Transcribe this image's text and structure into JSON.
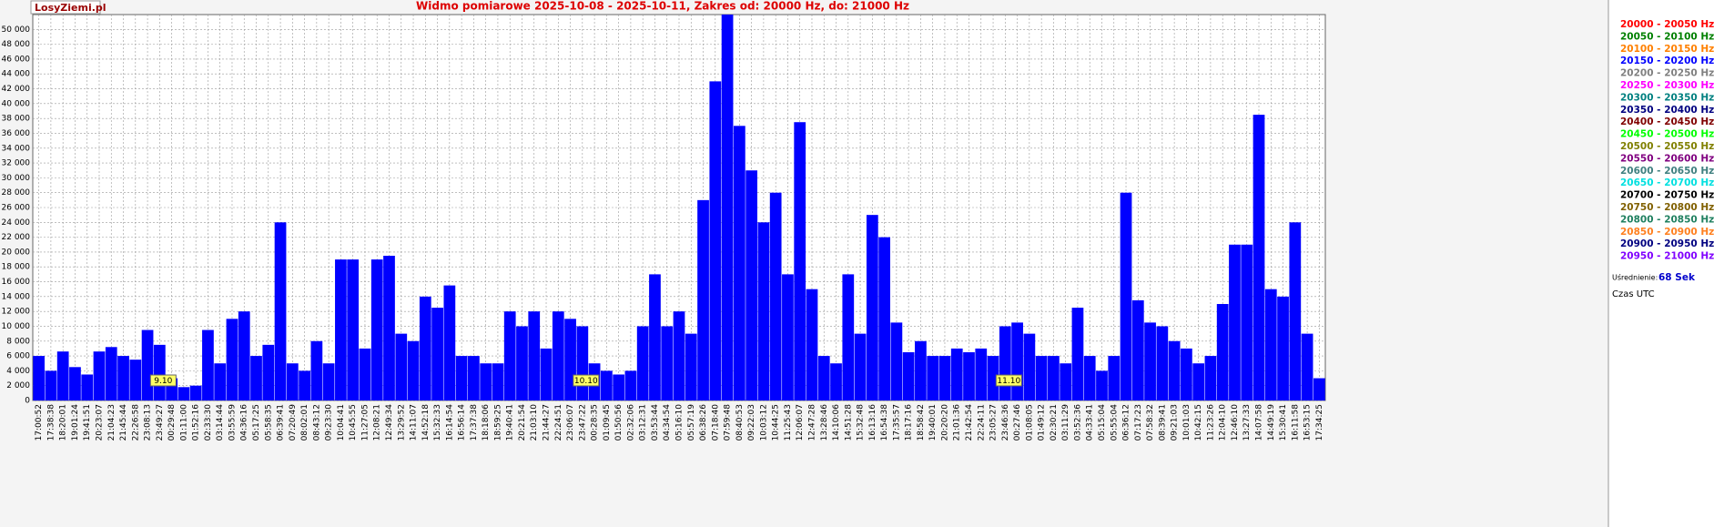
{
  "brand": "LosyZiemi.pl",
  "chart_data": {
    "type": "bar",
    "title": "Widmo pomiarowe 2025-10-08 - 2025-10-11, Zakres od: 20000 Hz, do: 21000 Hz",
    "categories": [
      "17:00:52",
      "17:38:38",
      "18:20:01",
      "19:01:24",
      "19:41:51",
      "20:23:07",
      "21:04:23",
      "21:45:44",
      "22:26:58",
      "23:08:13",
      "23:49:27",
      "00:29:48",
      "01:11:00",
      "01:52:16",
      "02:33:30",
      "03:14:44",
      "03:55:59",
      "04:36:16",
      "05:17:25",
      "05:58:35",
      "06:39:41",
      "07:20:49",
      "08:02:01",
      "08:43:12",
      "09:23:30",
      "10:04:41",
      "10:45:55",
      "11:27:05",
      "12:08:21",
      "12:49:34",
      "13:29:52",
      "14:11:07",
      "14:52:18",
      "15:32:33",
      "16:14:54",
      "16:56:14",
      "17:37:38",
      "18:18:06",
      "18:59:25",
      "19:40:41",
      "20:21:54",
      "21:03:10",
      "21:44:27",
      "22:24:51",
      "23:06:07",
      "23:47:22",
      "00:28:35",
      "01:09:45",
      "01:50:56",
      "02:32:06",
      "03:12:31",
      "03:53:44",
      "04:34:54",
      "05:16:10",
      "05:57:19",
      "06:38:26",
      "07:18:40",
      "07:59:48",
      "08:40:53",
      "09:22:03",
      "10:03:12",
      "10:44:25",
      "11:25:43",
      "12:06:07",
      "12:47:28",
      "13:28:46",
      "14:10:06",
      "14:51:28",
      "15:32:48",
      "16:13:16",
      "16:54:38",
      "17:35:57",
      "18:17:16",
      "18:58:42",
      "19:40:01",
      "20:20:20",
      "21:01:36",
      "21:42:54",
      "22:24:11",
      "23:05:27",
      "23:46:36",
      "00:27:46",
      "01:08:05",
      "01:49:12",
      "02:30:21",
      "03:11:29",
      "03:52:36",
      "04:33:41",
      "05:15:04",
      "05:55:04",
      "06:36:12",
      "07:17:23",
      "07:58:32",
      "08:39:41",
      "09:21:03",
      "10:01:03",
      "10:42:15",
      "11:23:26",
      "12:04:10",
      "12:46:10",
      "13:27:33",
      "14:07:58",
      "14:49:19",
      "15:30:41",
      "16:11:58",
      "16:53:15",
      "17:34:25"
    ],
    "values": [
      6000,
      4000,
      6600,
      4500,
      3500,
      6600,
      7200,
      6000,
      5500,
      9500,
      7500,
      3000,
      1800,
      2000,
      9500,
      5000,
      11000,
      12000,
      6000,
      7500,
      24000,
      5000,
      4000,
      8000,
      5000,
      19000,
      19000,
      7000,
      19000,
      19500,
      9000,
      8000,
      14000,
      12500,
      15500,
      6000,
      6000,
      5000,
      5000,
      12000,
      10000,
      12000,
      7000,
      12000,
      11000,
      10000,
      5000,
      4000,
      3500,
      4000,
      10000,
      17000,
      10000,
      12000,
      9000,
      27000,
      43000,
      52000,
      37000,
      31000,
      24000,
      28000,
      17000,
      37500,
      15000,
      6000,
      5000,
      17000,
      9000,
      25000,
      22000,
      10500,
      6500,
      8000,
      6000,
      6000,
      7000,
      6500,
      7000,
      6000,
      10000,
      10500,
      9000,
      6000,
      6000,
      5000,
      12500,
      6000,
      4000,
      6000,
      28000,
      13500,
      10500,
      10000,
      8000,
      7000,
      5000,
      6000,
      13000,
      21000,
      21000,
      38500,
      15000,
      14000,
      24000,
      9000,
      3000
    ],
    "color": "#0000ff",
    "ylim": [
      0,
      52000
    ],
    "yticks": [
      0,
      {
        "value": 2000,
        "label": "2 000"
      },
      {
        "value": 4000,
        "label": "4 000"
      },
      {
        "value": 6000,
        "label": "6 000"
      },
      {
        "value": 8000,
        "label": "8 000"
      },
      {
        "value": 10000,
        "label": "10 000"
      },
      {
        "value": 12000,
        "label": "12 000"
      },
      {
        "value": 14000,
        "label": "14 000"
      },
      {
        "value": 16000,
        "label": "16 000"
      },
      {
        "value": 18000,
        "label": "18 000"
      },
      {
        "value": 20000,
        "label": "20 000"
      },
      {
        "value": 22000,
        "label": "22 000"
      },
      {
        "value": 24000,
        "label": "24 000"
      },
      {
        "value": 26000,
        "label": "26 000"
      },
      {
        "value": 28000,
        "label": "28 000"
      },
      {
        "value": 30000,
        "label": "30 000"
      },
      {
        "value": 32000,
        "label": "32 000"
      },
      {
        "value": 34000,
        "label": "34 000"
      },
      {
        "value": 36000,
        "label": "36 000"
      },
      {
        "value": 38000,
        "label": "38 000"
      },
      {
        "value": 40000,
        "label": "40 000"
      },
      {
        "value": 42000,
        "label": "42 000"
      },
      {
        "value": 44000,
        "label": "44 000"
      },
      {
        "value": 46000,
        "label": "46 000"
      },
      {
        "value": 48000,
        "label": "48 000"
      },
      {
        "value": 50000,
        "label": "50 000"
      }
    ],
    "grid": true,
    "annotations": [
      {
        "text": "9.10",
        "category": "23:49:27"
      },
      {
        "text": "10.10",
        "category": "23:47:22"
      },
      {
        "text": "11.10",
        "category": "23:46:36"
      }
    ],
    "legend": [
      {
        "label": "20000 - 20050 Hz",
        "color": "#ff0000"
      },
      {
        "label": "20050 - 20100 Hz",
        "color": "#008000"
      },
      {
        "label": "20100 - 20150 Hz",
        "color": "#ff8000"
      },
      {
        "label": "20150 - 20200 Hz",
        "color": "#0000ff"
      },
      {
        "label": "20200 - 20250 Hz",
        "color": "#808080"
      },
      {
        "label": "20250 - 20300 Hz",
        "color": "#ff00ff"
      },
      {
        "label": "20300 - 20350 Hz",
        "color": "#008080"
      },
      {
        "label": "20350 - 20400 Hz",
        "color": "#000080"
      },
      {
        "label": "20400 - 20450 Hz",
        "color": "#800000"
      },
      {
        "label": "20450 - 20500 Hz",
        "color": "#00ff00"
      },
      {
        "label": "20500 - 20550 Hz",
        "color": "#808000"
      },
      {
        "label": "20550 - 20600 Hz",
        "color": "#800080"
      },
      {
        "label": "20600 - 20650 Hz",
        "color": "#408080"
      },
      {
        "label": "20650 - 20700 Hz",
        "color": "#00e0e0"
      },
      {
        "label": "20700 - 20750 Hz",
        "color": "#000000"
      },
      {
        "label": "20750 - 20800 Hz",
        "color": "#806000"
      },
      {
        "label": "20800 - 20850 Hz",
        "color": "#208060"
      },
      {
        "label": "20850 - 20900 Hz",
        "color": "#ff8020"
      },
      {
        "label": "20900 - 20950 Hz",
        "color": "#000080"
      },
      {
        "label": "20950 - 21000 Hz",
        "color": "#8000ff"
      }
    ],
    "averaging_label": "Uśrednienie:",
    "averaging_value": "68 Sek",
    "time_note": "Czas UTC"
  }
}
